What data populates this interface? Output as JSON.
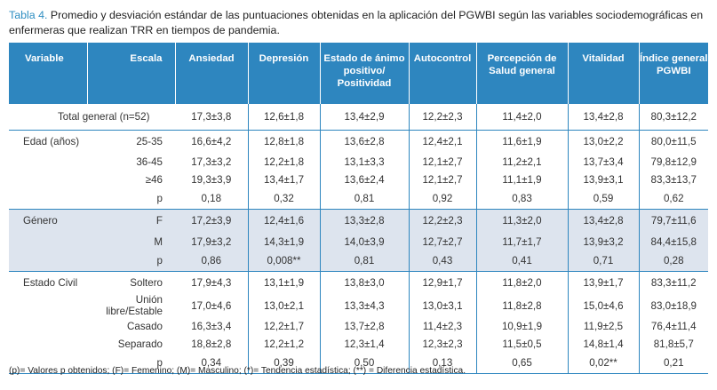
{
  "caption": {
    "label": "Tabla 4.",
    "text": " Promedio y desviación estándar de las puntuaciones obtenidas en la aplicación del PGWBI según las variables sociodemográficas en enfermeras que realizan TRR en tiempos de pandemia."
  },
  "table": {
    "headers": {
      "variable": "Variable",
      "escala": "Escala",
      "cols": [
        "Ansiedad",
        "Depresión",
        "Estado de ánimo positivo/ Positividad",
        "Autocontrol",
        "Percepción de Salud general",
        "Vitalidad",
        "Índice general PGWBI"
      ]
    },
    "total": {
      "label": "Total general (n=52)",
      "values": [
        "17,3±3,8",
        "12,6±1,8",
        "13,4±2,9",
        "12,2±2,3",
        "11,4±2,0",
        "13,4±2,8",
        "80,3±12,2"
      ]
    },
    "groups": [
      {
        "name": "Edad (años)",
        "rows": [
          {
            "scale": "25-35",
            "values": [
              "16,6±4,2",
              "12,8±1,8",
              "13,6±2,8",
              "12,4±2,1",
              "11,6±1,9",
              "13,0±2,2",
              "80,0±11,5"
            ]
          },
          {
            "scale": "36-45",
            "values": [
              "17,3±3,2",
              "12,2±1,8",
              "13,1±3,3",
              "12,1±2,7",
              "11,2±2,1",
              "13,7±3,4",
              "79,8±12,9"
            ]
          },
          {
            "scale": "≥46",
            "values": [
              "19,3±3,9",
              "13,4±1,7",
              "13,6±2,4",
              "12,1±2,7",
              "11,1±1,9",
              "13,9±3,1",
              "83,3±13,7"
            ]
          },
          {
            "scale": "p",
            "values": [
              "0,18",
              "0,32",
              "0,81",
              "0,92",
              "0,83",
              "0,59",
              "0,62"
            ]
          }
        ]
      },
      {
        "name": "Género",
        "rows": [
          {
            "scale": "F",
            "values": [
              "17,2±3,9",
              "12,4±1,6",
              "13,3±2,8",
              "12,2±2,3",
              "11,3±2,0",
              "13,4±2,8",
              "79,7±11,6"
            ]
          },
          {
            "scale": "M",
            "values": [
              "17,9±3,2",
              "14,3±1,9",
              "14,0±3,9",
              "12,7±2,7",
              "11,7±1,7",
              "13,9±3,2",
              "84,4±15,8"
            ]
          },
          {
            "scale": "p",
            "values": [
              "0,86",
              "0,008**",
              "0,81",
              "0,43",
              "0,41",
              "0,71",
              "0,28"
            ]
          }
        ]
      },
      {
        "name": "Estado Civil",
        "rows": [
          {
            "scale": "Soltero",
            "values": [
              "17,9±4,3",
              "13,1±1,9",
              "13,8±3,0",
              "12,9±1,7",
              "11,8±2,0",
              "13,9±1,7",
              "83,3±11,2"
            ]
          },
          {
            "scale": "Unión libre/Estable",
            "values": [
              "17,0±4,6",
              "13,0±2,1",
              "13,3±4,3",
              "13,0±3,1",
              "11,8±2,8",
              "15,0±4,6",
              "83,0±18,9"
            ]
          },
          {
            "scale": "Casado",
            "values": [
              "16,3±3,4",
              "12,2±1,7",
              "13,7±2,8",
              "11,4±2,3",
              "10,9±1,9",
              "11,9±2,5",
              "76,4±11,4"
            ]
          },
          {
            "scale": "Separado",
            "values": [
              "18,8±2,8",
              "12,2±1,2",
              "12,3±1,4",
              "12,3±2,3",
              "11,5±0,5",
              "14,8±1,4",
              "81,8±5,7"
            ]
          },
          {
            "scale": "p",
            "values": [
              "0,34",
              "0,39",
              "0,50",
              "0,13",
              "0,65",
              "0,02**",
              "0,21"
            ]
          }
        ]
      }
    ]
  },
  "footnote": "(p)= Valores p obtenidos; (F)= Femenino; (M)= Masculino; (*)= Tendencia estadística; (**) = Diferencia estadística."
}
